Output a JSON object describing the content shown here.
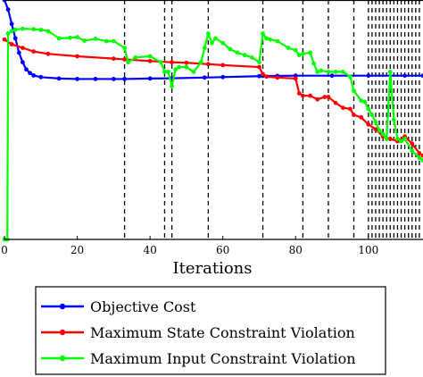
{
  "chart_data": {
    "type": "line",
    "xlabel": "Iterations",
    "ylabel": "",
    "xlim": [
      0,
      115
    ],
    "ylim": [
      0,
      1
    ],
    "x_ticks": [
      "0",
      "20",
      "40",
      "60",
      "80",
      "100"
    ],
    "grid": false,
    "legend_position": "bottom",
    "vertical_markers": [
      33,
      44,
      46,
      56,
      71,
      82,
      89,
      96,
      100,
      101,
      102,
      103,
      104,
      105,
      106,
      107,
      108,
      109,
      110,
      111,
      112,
      113,
      114
    ],
    "series": [
      {
        "name": "Objective Cost",
        "color": "#0000ff",
        "points": [
          [
            0,
            1.0
          ],
          [
            1,
            0.96
          ],
          [
            2,
            0.9
          ],
          [
            3,
            0.84
          ],
          [
            4,
            0.78
          ],
          [
            5,
            0.74
          ],
          [
            6,
            0.71
          ],
          [
            7,
            0.695
          ],
          [
            8,
            0.685
          ],
          [
            10,
            0.678
          ],
          [
            15,
            0.672
          ],
          [
            20,
            0.67
          ],
          [
            25,
            0.67
          ],
          [
            30,
            0.67
          ],
          [
            33,
            0.67
          ],
          [
            40,
            0.672
          ],
          [
            46,
            0.673
          ],
          [
            55,
            0.676
          ],
          [
            60,
            0.678
          ],
          [
            70,
            0.682
          ],
          [
            71,
            0.683
          ],
          [
            75,
            0.683
          ],
          [
            80,
            0.684
          ],
          [
            90,
            0.684
          ],
          [
            100,
            0.684
          ],
          [
            110,
            0.684
          ],
          [
            115,
            0.684
          ]
        ]
      },
      {
        "name": "Maximum State Constraint Violation",
        "color": "#ff0000",
        "points": [
          [
            0,
            0.835
          ],
          [
            2,
            0.815
          ],
          [
            5,
            0.8
          ],
          [
            8,
            0.785
          ],
          [
            12,
            0.775
          ],
          [
            20,
            0.765
          ],
          [
            30,
            0.755
          ],
          [
            33,
            0.752
          ],
          [
            40,
            0.745
          ],
          [
            46,
            0.74
          ],
          [
            50,
            0.738
          ],
          [
            56,
            0.732
          ],
          [
            60,
            0.728
          ],
          [
            70,
            0.72
          ],
          [
            71,
            0.69
          ],
          [
            72,
            0.68
          ],
          [
            75,
            0.676
          ],
          [
            80,
            0.672
          ],
          [
            81,
            0.61
          ],
          [
            82,
            0.6
          ],
          [
            84,
            0.6
          ],
          [
            86,
            0.585
          ],
          [
            88,
            0.595
          ],
          [
            89,
            0.595
          ],
          [
            91,
            0.57
          ],
          [
            93,
            0.55
          ],
          [
            95,
            0.545
          ],
          [
            96,
            0.52
          ],
          [
            98,
            0.51
          ],
          [
            100,
            0.48
          ],
          [
            102,
            0.46
          ],
          [
            104,
            0.43
          ],
          [
            106,
            0.42
          ],
          [
            108,
            0.41
          ],
          [
            110,
            0.43
          ],
          [
            112,
            0.4
          ],
          [
            114,
            0.36
          ],
          [
            115,
            0.35
          ]
        ]
      },
      {
        "name": "Maximum Input Constraint Violation",
        "color": "#00ff00",
        "points": [
          [
            0,
            0.0
          ],
          [
            0.8,
            0.0
          ],
          [
            1,
            0.86
          ],
          [
            2,
            0.87
          ],
          [
            3,
            0.876
          ],
          [
            5,
            0.88
          ],
          [
            8,
            0.878
          ],
          [
            10,
            0.875
          ],
          [
            12,
            0.87
          ],
          [
            15,
            0.84
          ],
          [
            18,
            0.842
          ],
          [
            20,
            0.845
          ],
          [
            22,
            0.83
          ],
          [
            25,
            0.838
          ],
          [
            28,
            0.828
          ],
          [
            30,
            0.828
          ],
          [
            33,
            0.8
          ],
          [
            34,
            0.74
          ],
          [
            36,
            0.76
          ],
          [
            40,
            0.765
          ],
          [
            43,
            0.74
          ],
          [
            44,
            0.7
          ],
          [
            45,
            0.7
          ],
          [
            46,
            0.64
          ],
          [
            47,
            0.71
          ],
          [
            48,
            0.72
          ],
          [
            50,
            0.72
          ],
          [
            52,
            0.7
          ],
          [
            54,
            0.74
          ],
          [
            55,
            0.8
          ],
          [
            56,
            0.86
          ],
          [
            57,
            0.82
          ],
          [
            58,
            0.84
          ],
          [
            60,
            0.82
          ],
          [
            62,
            0.795
          ],
          [
            64,
            0.78
          ],
          [
            66,
            0.77
          ],
          [
            68,
            0.76
          ],
          [
            70,
            0.74
          ],
          [
            71,
            0.86
          ],
          [
            72,
            0.84
          ],
          [
            73,
            0.835
          ],
          [
            75,
            0.828
          ],
          [
            78,
            0.8
          ],
          [
            80,
            0.79
          ],
          [
            81,
            0.77
          ],
          [
            82,
            0.775
          ],
          [
            84,
            0.78
          ],
          [
            85,
            0.735
          ],
          [
            86,
            0.7
          ],
          [
            87,
            0.705
          ],
          [
            89,
            0.7
          ],
          [
            91,
            0.7
          ],
          [
            93,
            0.7
          ],
          [
            95,
            0.68
          ],
          [
            96,
            0.62
          ],
          [
            98,
            0.58
          ],
          [
            99,
            0.575
          ],
          [
            100,
            0.545
          ],
          [
            101,
            0.52
          ],
          [
            102,
            0.49
          ],
          [
            103,
            0.455
          ],
          [
            104,
            0.44
          ],
          [
            105,
            0.42
          ],
          [
            106,
            0.7
          ],
          [
            107,
            0.5
          ],
          [
            108,
            0.42
          ],
          [
            109,
            0.41
          ],
          [
            110,
            0.42
          ],
          [
            112,
            0.37
          ],
          [
            114,
            0.34
          ],
          [
            115,
            0.33
          ]
        ]
      }
    ]
  }
}
